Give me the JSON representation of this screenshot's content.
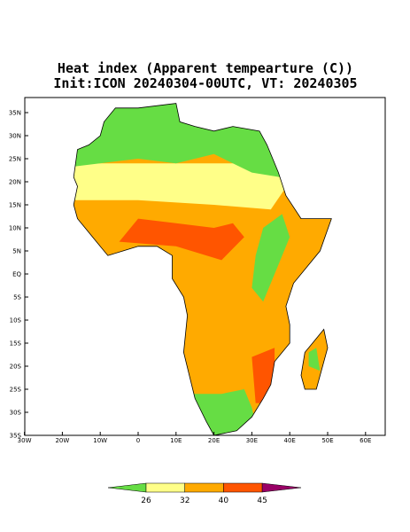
{
  "header": {
    "title": "Heat index (Apparent tempearture (C))",
    "subtitle": "Init:ICON 20240304-00UTC, VT: 20240305"
  },
  "lat_labels": [
    "35N",
    "30N",
    "25N",
    "20N",
    "15N",
    "10N",
    "5N",
    "EQ",
    "5S",
    "10S",
    "15S",
    "20S",
    "25S",
    "30S",
    "35S"
  ],
  "lon_labels": [
    "30W",
    "20W",
    "10W",
    "0",
    "10E",
    "20E",
    "30E",
    "40E",
    "50E",
    "60E"
  ],
  "colorbar": {
    "ticks": [
      26,
      32,
      40,
      45
    ],
    "colors": [
      "#66dd44",
      "#ffff88",
      "#ffaa00",
      "#ff5500",
      "#990066"
    ]
  }
}
